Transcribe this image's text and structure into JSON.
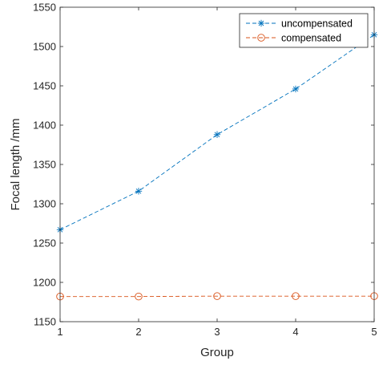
{
  "chart_data": {
    "type": "line",
    "x": [
      1,
      2,
      3,
      4,
      5
    ],
    "xlabel": "Group",
    "ylabel": "Focal length /mm",
    "xlim": [
      1,
      5
    ],
    "ylim": [
      1150,
      1550
    ],
    "xticks": [
      "1",
      "2",
      "3",
      "4",
      "5"
    ],
    "yticks": [
      "1150",
      "1200",
      "1250",
      "1300",
      "1350",
      "1400",
      "1450",
      "1500",
      "1550"
    ],
    "grid": false,
    "legend_position": "top-right",
    "series": [
      {
        "name": "uncompensated",
        "values": [
          1267,
          1316,
          1388,
          1446,
          1515
        ],
        "color": "#0072BD",
        "marker": "asterisk",
        "line": "dashed"
      },
      {
        "name": "compensated",
        "values": [
          1182,
          1182,
          1182.5,
          1182.5,
          1182.5
        ],
        "color": "#D95319",
        "marker": "circle",
        "line": "dashed"
      }
    ]
  }
}
